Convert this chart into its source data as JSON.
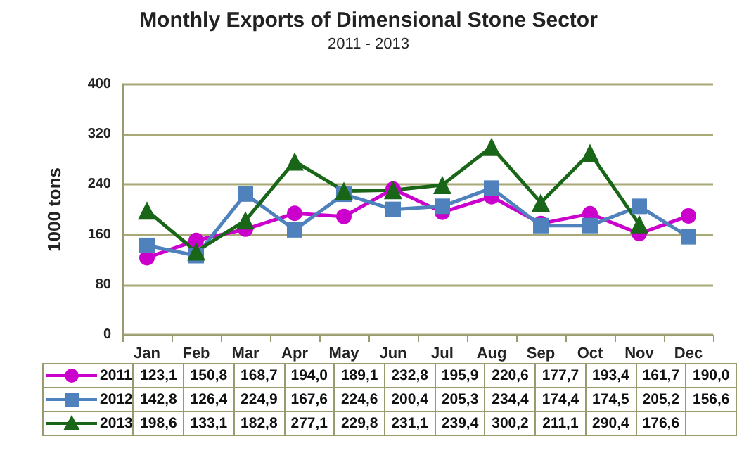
{
  "chart_data": {
    "type": "line",
    "title": "Monthly Exports of Dimensional Stone Sector",
    "subtitle": "2011 - 2013",
    "ylabel": "1000 tons",
    "categories": [
      "Jan",
      "Feb",
      "Mar",
      "Apr",
      "May",
      "Jun",
      "Jul",
      "Aug",
      "Sep",
      "Oct",
      "Nov",
      "Dec"
    ],
    "ylim": [
      0,
      400
    ],
    "yticks": [
      0,
      80,
      160,
      240,
      320,
      400
    ],
    "grid": "y",
    "legend": "bottom",
    "line_style": "solid",
    "series": [
      {
        "name": "2011",
        "color": "#cc00cc",
        "marker": "circle",
        "values": [
          123.1,
          150.8,
          168.7,
          194.0,
          189.1,
          232.8,
          195.9,
          220.6,
          177.7,
          193.4,
          161.7,
          190.0
        ],
        "value_labels": [
          "123,1",
          "150,8",
          "168,7",
          "194,0",
          "189,1",
          "232,8",
          "195,9",
          "220,6",
          "177,7",
          "193,4",
          "161,7",
          "190,0"
        ]
      },
      {
        "name": "2012",
        "color": "#4f81bd",
        "marker": "square",
        "values": [
          142.8,
          126.4,
          224.9,
          167.6,
          224.6,
          200.4,
          205.3,
          234.4,
          174.4,
          174.5,
          205.2,
          156.6
        ],
        "value_labels": [
          "142,8",
          "126,4",
          "224,9",
          "167,6",
          "224,6",
          "200,4",
          "205,3",
          "234,4",
          "174,4",
          "174,5",
          "205,2",
          "156,6"
        ]
      },
      {
        "name": "2013",
        "color": "#1a6618",
        "marker": "triangle",
        "values": [
          198.6,
          133.1,
          182.8,
          277.1,
          229.8,
          231.1,
          239.4,
          300.2,
          211.1,
          290.4,
          176.6,
          null
        ],
        "value_labels": [
          "198,6",
          "133,1",
          "182,8",
          "277,1",
          "229,8",
          "231,1",
          "239,4",
          "300,2",
          "211,1",
          "290,4",
          "176,6",
          null
        ]
      }
    ]
  }
}
